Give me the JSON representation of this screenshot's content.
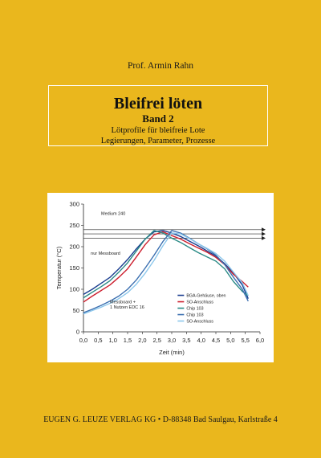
{
  "author": "Prof. Armin Rahn",
  "title": "Bleifrei löten",
  "band": "Band 2",
  "subtitle_1": "Lötprofile für bleifreie Lote",
  "subtitle_2": "Legierungen, Parameter, Prozesse",
  "publisher": "EUGEN G. LEUZE VERLAG KG • D-88348 Bad Saulgau, Karlstraße 4",
  "colors": {
    "background": "#eab71d",
    "frame": "#ffffff"
  },
  "chart_data": {
    "type": "line",
    "title": "",
    "xlabel": "Zeit (min)",
    "ylabel": "Temperatur (°C)",
    "xlim": [
      0,
      6
    ],
    "ylim": [
      0,
      300
    ],
    "x_ticks": [
      "0,0",
      "0,5",
      "1,0",
      "1,5",
      "2,0",
      "2,5",
      "3,0",
      "3,5",
      "4,0",
      "4,5",
      "5,0",
      "5,5",
      "6,0"
    ],
    "y_ticks": [
      "0",
      "50",
      "100",
      "150",
      "200",
      "250",
      "300"
    ],
    "grid": false,
    "legend_position": "bottom-right",
    "annotations": {
      "medium": "Medium 240",
      "nur_messboard": "nur Messboard",
      "messboard_1": "Messboard +",
      "messboard_2": "1 Nutzen EDC 16"
    },
    "reference_lines": [
      240,
      230,
      220
    ],
    "series": [
      {
        "name": "BGA-Gehäuse, oben",
        "color": "#1a3d8f",
        "x": [
          0,
          0.3,
          0.6,
          0.9,
          1.2,
          1.5,
          1.8,
          2.1,
          2.4,
          2.7,
          3.0,
          3.3,
          3.6,
          3.9,
          4.2,
          4.5,
          4.8,
          5.1,
          5.4,
          5.6
        ],
        "y": [
          88,
          100,
          114,
          128,
          148,
          170,
          195,
          218,
          235,
          238,
          232,
          224,
          213,
          202,
          190,
          178,
          160,
          138,
          110,
          78
        ]
      },
      {
        "name": "SO-Anschluss",
        "color": "#cc1f2e",
        "x": [
          0,
          0.3,
          0.6,
          0.9,
          1.2,
          1.5,
          1.8,
          2.1,
          2.4,
          2.7,
          3.0,
          3.3,
          3.6,
          3.9,
          4.2,
          4.5,
          4.8,
          5.1,
          5.4,
          5.6
        ],
        "y": [
          70,
          84,
          97,
          110,
          128,
          148,
          176,
          205,
          228,
          235,
          226,
          218,
          207,
          197,
          187,
          175,
          158,
          135,
          118,
          105
        ]
      },
      {
        "name": "Chip 103",
        "color": "#2a8a86",
        "x": [
          0,
          0.3,
          0.6,
          0.9,
          1.2,
          1.5,
          1.8,
          2.1,
          2.4,
          2.7,
          3.0,
          3.3,
          3.6,
          3.9,
          4.2,
          4.5,
          4.8,
          5.1,
          5.4,
          5.6
        ],
        "y": [
          80,
          93,
          106,
          120,
          140,
          162,
          190,
          218,
          238,
          232,
          220,
          210,
          198,
          186,
          176,
          166,
          148,
          118,
          95,
          85
        ]
      },
      {
        "name": "Chip 103",
        "color": "#3b6fb0",
        "x": [
          0,
          0.3,
          0.6,
          0.9,
          1.2,
          1.5,
          1.8,
          2.1,
          2.4,
          2.7,
          3.0,
          3.3,
          3.6,
          3.9,
          4.2,
          4.5,
          4.8,
          5.1,
          5.4,
          5.6
        ],
        "y": [
          45,
          53,
          62,
          72,
          84,
          100,
          122,
          150,
          180,
          212,
          238,
          232,
          220,
          207,
          195,
          180,
          158,
          128,
          100,
          72
        ]
      },
      {
        "name": "SO-Anschluss",
        "color": "#8cc7ec",
        "x": [
          0,
          0.3,
          0.6,
          0.9,
          1.2,
          1.5,
          1.8,
          2.1,
          2.4,
          2.7,
          3.0,
          3.3,
          3.6,
          3.9,
          4.2,
          4.5,
          4.8,
          5.1,
          5.4,
          5.6
        ],
        "y": [
          42,
          50,
          58,
          67,
          78,
          92,
          112,
          138,
          168,
          202,
          232,
          230,
          219,
          207,
          196,
          184,
          166,
          140,
          115,
          85
        ]
      }
    ]
  }
}
